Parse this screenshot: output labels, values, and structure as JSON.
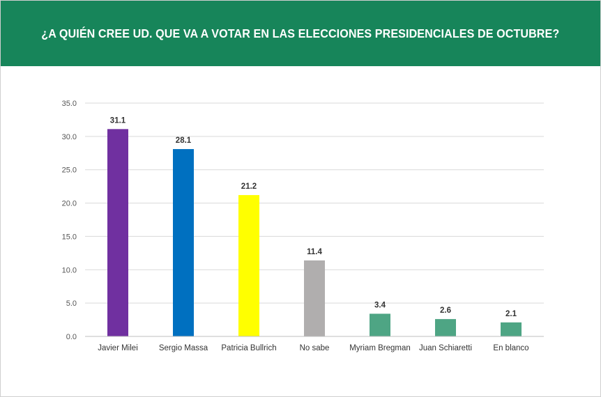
{
  "header": {
    "title": "¿A QUIÉN CREE UD. QUE VA A VOTAR EN LAS ELECCIONES PRESIDENCIALES DE OCTUBRE?",
    "background": "#17855a"
  },
  "chart_data": {
    "type": "bar",
    "title": "¿A QUIÉN CREE UD. QUE VA A VOTAR EN LAS ELECCIONES PRESIDENCIALES DE OCTUBRE?",
    "xlabel": "",
    "ylabel": "",
    "ylim": [
      0,
      35
    ],
    "yticks": [
      "0.0",
      "5.0",
      "10.0",
      "15.0",
      "20.0",
      "25.0",
      "30.0",
      "35.0"
    ],
    "grid": true,
    "legend": "none",
    "categories": [
      "Javier Milei",
      "Sergio Massa",
      "Patricia Bullrich",
      "No sabe",
      "Myriam Bregman",
      "Juan Schiaretti",
      "En blanco"
    ],
    "values": [
      31.1,
      28.1,
      21.2,
      11.4,
      3.4,
      2.6,
      2.1
    ],
    "labels": [
      "31.1",
      "28.1",
      "21.2",
      "11.4",
      "3.4",
      "2.6",
      "2.1"
    ],
    "colors": [
      "#7030a0",
      "#0070c0",
      "#ffff00",
      "#b0aeae",
      "#4ea584",
      "#4ea584",
      "#4ea584"
    ]
  }
}
